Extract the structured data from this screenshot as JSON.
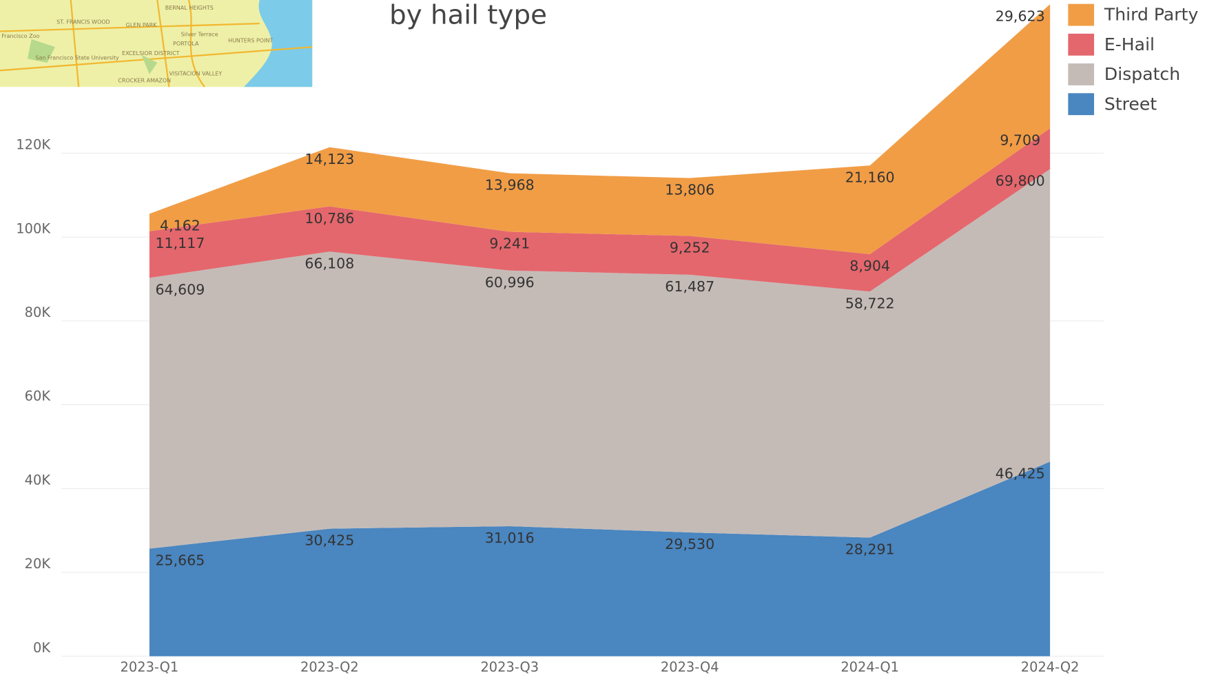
{
  "map": {
    "labels": [
      "ST. FRANCIS WOOD",
      "GLEN PARK",
      "BERNAL HEIGHTS",
      "Silver Terrace",
      "PORTOLA",
      "HUNTERS POINT",
      "EXCELSIOR DISTRICT",
      "San Francisco State University",
      "VISITACION VALLEY",
      "CROCKER AMAZON",
      "Francisco Zoo"
    ]
  },
  "chart_data": {
    "type": "area",
    "title": "by hail type",
    "categories": [
      "2023-Q1",
      "2023-Q2",
      "2023-Q3",
      "2023-Q4",
      "2024-Q1",
      "2024-Q2"
    ],
    "series": [
      {
        "name": "Third Party",
        "color": "#f19d46",
        "values": [
          4162,
          14123,
          13968,
          13806,
          21160,
          29623
        ],
        "value_labels": [
          "4,162",
          "14,123",
          "13,968",
          "13,806",
          "21,160",
          "29,623"
        ]
      },
      {
        "name": "E-Hail",
        "color": "#e4676d",
        "values": [
          11117,
          10786,
          9241,
          9252,
          8904,
          9709
        ],
        "value_labels": [
          "11,117",
          "10,786",
          "9,241",
          "9,252",
          "8,904",
          "9,709"
        ]
      },
      {
        "name": "Dispatch",
        "color": "#c4bbb7",
        "values": [
          64609,
          66108,
          60996,
          61487,
          58722,
          69800
        ],
        "value_labels": [
          "64,609",
          "66,108",
          "60,996",
          "61,487",
          "58,722",
          "69,800"
        ]
      },
      {
        "name": "Street",
        "color": "#4a86c0",
        "values": [
          25665,
          30425,
          31016,
          29530,
          28291,
          46425
        ],
        "value_labels": [
          "25,665",
          "30,425",
          "31,016",
          "29,530",
          "28,291",
          "46,425"
        ]
      }
    ],
    "stacked": true,
    "ylim": [
      0,
      156000
    ],
    "yticks": [
      {
        "value": 0,
        "label": "0K"
      },
      {
        "value": 20000,
        "label": "20K"
      },
      {
        "value": 40000,
        "label": "40K"
      },
      {
        "value": 60000,
        "label": "60K"
      },
      {
        "value": 80000,
        "label": "80K"
      },
      {
        "value": 100000,
        "label": "100K"
      },
      {
        "value": 120000,
        "label": "120K"
      }
    ],
    "grid": true,
    "legend": "top-right"
  }
}
